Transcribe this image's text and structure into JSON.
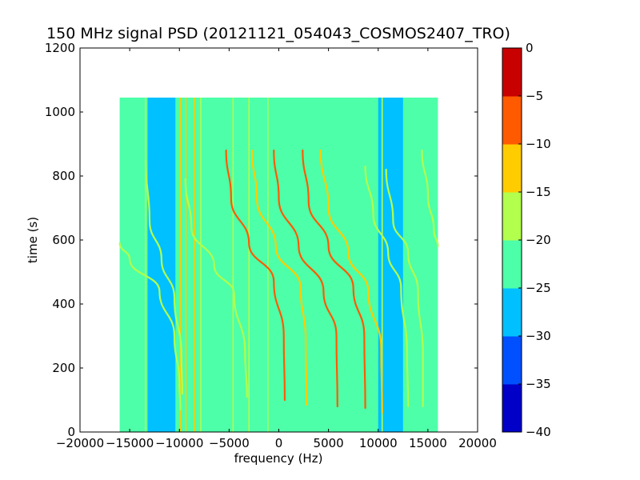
{
  "chart_data": {
    "type": "heatmap",
    "title": "150 MHz signal PSD (20121121_054043_COSMOS2407_TRO)",
    "xlabel": "frequency (Hz)",
    "ylabel": "time (s)",
    "xlim": [
      -20000,
      20000
    ],
    "ylim": [
      0,
      1200
    ],
    "xticks": [
      -20000,
      -15000,
      -10000,
      -5000,
      0,
      5000,
      10000,
      15000,
      20000
    ],
    "yticks": [
      0,
      200,
      400,
      600,
      800,
      1000,
      1200
    ],
    "grid": false,
    "data_extent": {
      "x": [
        -16000,
        16000
      ],
      "y": [
        0,
        1045
      ]
    },
    "colorbar": {
      "levels": [
        -40,
        -35,
        -30,
        -25,
        -20,
        -15,
        -10,
        -5,
        0
      ],
      "ticks": [
        -40,
        -35,
        -30,
        -25,
        -20,
        -15,
        -10,
        -5,
        0
      ],
      "colors": [
        "#0000c8",
        "#0050ff",
        "#00c0ff",
        "#4dffa8",
        "#b2ff4d",
        "#ffcc00",
        "#ff5a00",
        "#c80000"
      ],
      "colormap": "jet"
    },
    "background_level_db": -22.5,
    "low_bands": [
      {
        "x": [
          -13200,
          -10400
        ],
        "level_db": -27.5
      },
      {
        "x": [
          10000,
          12500
        ],
        "level_db": -27.5
      },
      {
        "x": [
          -16000,
          -15200
        ],
        "level_db": -25
      },
      {
        "x": [
          15000,
          16000
        ],
        "level_db": -25
      }
    ],
    "vertical_lines": [
      {
        "x": -13400,
        "level_db": -17.5
      },
      {
        "x": -9900,
        "level_db": -12.5
      },
      {
        "x": -9350,
        "level_db": -12.5
      },
      {
        "x": -8500,
        "level_db": -12.5
      },
      {
        "x": -7850,
        "level_db": -17.5
      },
      {
        "x": -4600,
        "level_db": -17.5
      },
      {
        "x": -3000,
        "level_db": -17.5
      },
      {
        "x": -1100,
        "level_db": -17.5
      },
      {
        "x": 10400,
        "level_db": -20
      }
    ],
    "series": [
      {
        "points": [
          [
            -13400,
            850
          ],
          [
            -13000,
            660
          ],
          [
            -11800,
            540
          ],
          [
            -10500,
            420
          ],
          [
            -9800,
            240
          ],
          [
            -9700,
            120
          ]
        ],
        "level_db": -17.5
      },
      {
        "points": [
          [
            -16000,
            590
          ],
          [
            -15000,
            540
          ],
          [
            -12000,
            440
          ],
          [
            -10500,
            300
          ],
          [
            -10000,
            150
          ],
          [
            -9900,
            70
          ]
        ],
        "level_db": -17.5
      },
      {
        "points": [
          [
            -9400,
            790
          ],
          [
            -8800,
            640
          ],
          [
            -6500,
            520
          ],
          [
            -4500,
            430
          ],
          [
            -3400,
            250
          ],
          [
            -3200,
            110
          ]
        ],
        "level_db": -17.5
      },
      {
        "points": [
          [
            -5300,
            880
          ],
          [
            -4800,
            730
          ],
          [
            -3000,
            590
          ],
          [
            -500,
            470
          ],
          [
            500,
            300
          ],
          [
            600,
            100
          ]
        ],
        "level_db": -7.5
      },
      {
        "points": [
          [
            -2700,
            880
          ],
          [
            -2200,
            730
          ],
          [
            -300,
            580
          ],
          [
            2200,
            450
          ],
          [
            2700,
            290
          ],
          [
            2800,
            85
          ]
        ],
        "level_db": -12.5
      },
      {
        "points": [
          [
            -500,
            880
          ],
          [
            0,
            730
          ],
          [
            2000,
            580
          ],
          [
            4500,
            440
          ],
          [
            5800,
            300
          ],
          [
            5900,
            80
          ]
        ],
        "level_db": -7.5
      },
      {
        "points": [
          [
            2400,
            880
          ],
          [
            3000,
            720
          ],
          [
            5000,
            580
          ],
          [
            7500,
            450
          ],
          [
            8600,
            300
          ],
          [
            8700,
            75
          ]
        ],
        "level_db": -7.5
      },
      {
        "points": [
          [
            4200,
            880
          ],
          [
            5000,
            700
          ],
          [
            7000,
            560
          ],
          [
            9000,
            440
          ],
          [
            10300,
            260
          ],
          [
            10400,
            60
          ]
        ],
        "level_db": -12.5
      },
      {
        "points": [
          [
            8700,
            830
          ],
          [
            9500,
            680
          ],
          [
            11000,
            560
          ],
          [
            12300,
            450
          ],
          [
            12900,
            250
          ],
          [
            13000,
            80
          ]
        ],
        "level_db": -17.5
      },
      {
        "points": [
          [
            10800,
            820
          ],
          [
            11500,
            660
          ],
          [
            13000,
            560
          ],
          [
            14000,
            440
          ],
          [
            14500,
            240
          ],
          [
            14500,
            80
          ]
        ],
        "level_db": -20
      },
      {
        "points": [
          [
            14400,
            880
          ],
          [
            15000,
            740
          ],
          [
            15600,
            630
          ],
          [
            16000,
            580
          ]
        ],
        "level_db": -17.5
      }
    ]
  }
}
